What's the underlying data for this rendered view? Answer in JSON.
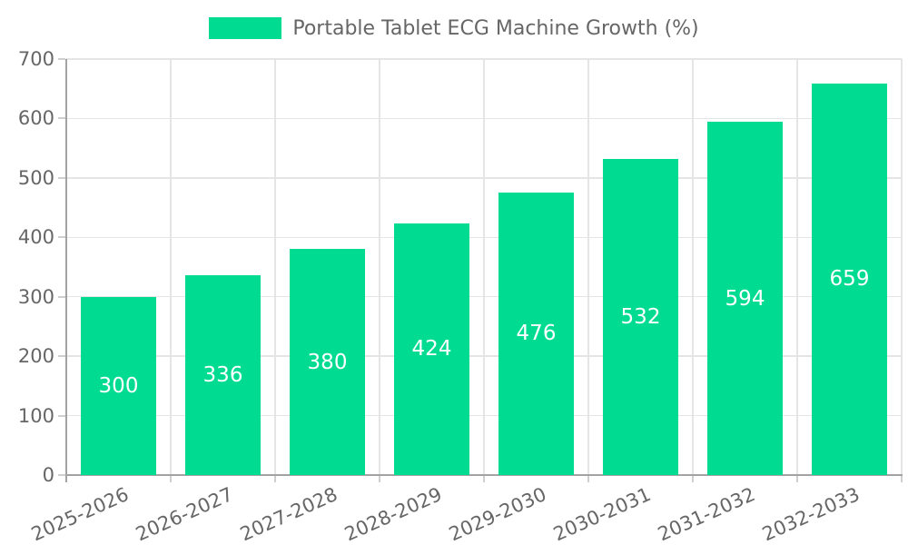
{
  "chart_data": {
    "type": "bar",
    "title": "Portable Tablet ECG Machine Growth (%)",
    "categories": [
      "2025-2026",
      "2026-2027",
      "2027-2028",
      "2028-2029",
      "2029-2030",
      "2030-2031",
      "2031-2032",
      "2032-2033"
    ],
    "values": [
      300,
      336,
      380,
      424,
      476,
      532,
      594,
      659
    ],
    "bar_labels": [
      "300",
      "336",
      "380",
      "424",
      "476",
      "532",
      "594",
      "659"
    ],
    "xlabel": "",
    "ylabel": "",
    "ylim": [
      0,
      700
    ],
    "ytick_step": 100,
    "ytick_labels": [
      "0",
      "100",
      "200",
      "300",
      "400",
      "500",
      "600",
      "700"
    ],
    "grid": true,
    "legend_position": "top-center",
    "colors": {
      "bar": "#00DB92",
      "grid": "#E5E5E5",
      "axis": "#A3A3A3",
      "tick_mark": "#CFCFCF",
      "label_text": "#666666",
      "value_text": "#FFFFFF",
      "background": "#FFFFFF"
    }
  }
}
